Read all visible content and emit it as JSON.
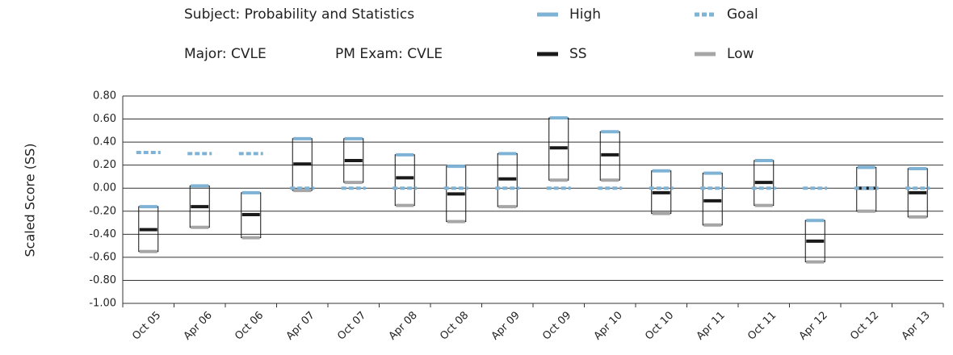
{
  "header": {
    "subject": "Subject: Probability and Statistics",
    "major": "Major: CVLE",
    "pm_exam": "PM Exam: CVLE"
  },
  "chart_data": {
    "type": "range_box",
    "ylabel": "Scaled Score (SS)",
    "categories": [
      "Oct 05",
      "Apr 06",
      "Oct 06",
      "Apr 07",
      "Oct 07",
      "Apr 08",
      "Oct 08",
      "Apr 09",
      "Oct 09",
      "Apr 10",
      "Oct 10",
      "Apr 11",
      "Oct 11",
      "Apr 12",
      "Oct 12",
      "Apr 13"
    ],
    "series": [
      {
        "name": "High",
        "color": "#7fb3d5",
        "values": [
          -0.16,
          0.02,
          -0.04,
          0.43,
          0.43,
          0.29,
          0.19,
          0.3,
          0.61,
          0.49,
          0.15,
          0.13,
          0.24,
          -0.28,
          0.18,
          0.17
        ]
      },
      {
        "name": "SS",
        "color": "#1a1a1a",
        "values": [
          -0.36,
          -0.16,
          -0.23,
          0.21,
          0.24,
          0.09,
          -0.05,
          0.08,
          0.35,
          0.29,
          -0.04,
          -0.11,
          0.05,
          -0.46,
          0.0,
          -0.04
        ]
      },
      {
        "name": "Low",
        "color": "#a6a6a6",
        "values": [
          -0.55,
          -0.34,
          -0.43,
          -0.02,
          0.05,
          -0.15,
          -0.29,
          -0.16,
          0.07,
          0.07,
          -0.22,
          -0.32,
          -0.15,
          -0.64,
          -0.2,
          -0.25
        ]
      },
      {
        "name": "Goal",
        "color": "#7fb3d5",
        "dashed": true,
        "values": [
          0.31,
          0.3,
          0.3,
          0,
          0,
          0,
          0,
          0,
          0,
          0,
          0,
          0,
          0,
          0,
          0,
          0
        ]
      }
    ],
    "ylim": [
      -1.0,
      0.8
    ],
    "yticks": [
      {
        "value": -1.0,
        "label": "-1.00"
      },
      {
        "value": -0.8,
        "label": "-0.80"
      },
      {
        "value": -0.6,
        "label": "-0.60"
      },
      {
        "value": -0.4,
        "label": "-0.40"
      },
      {
        "value": -0.2,
        "label": "-0.20"
      },
      {
        "value": 0,
        "label": "0.00"
      },
      {
        "value": 0.2,
        "label": "0.20"
      },
      {
        "value": 0.4,
        "label": "0.40"
      },
      {
        "value": 0.6,
        "label": "0.60"
      },
      {
        "value": 0.8,
        "label": "0.80"
      }
    ],
    "grid": true
  }
}
